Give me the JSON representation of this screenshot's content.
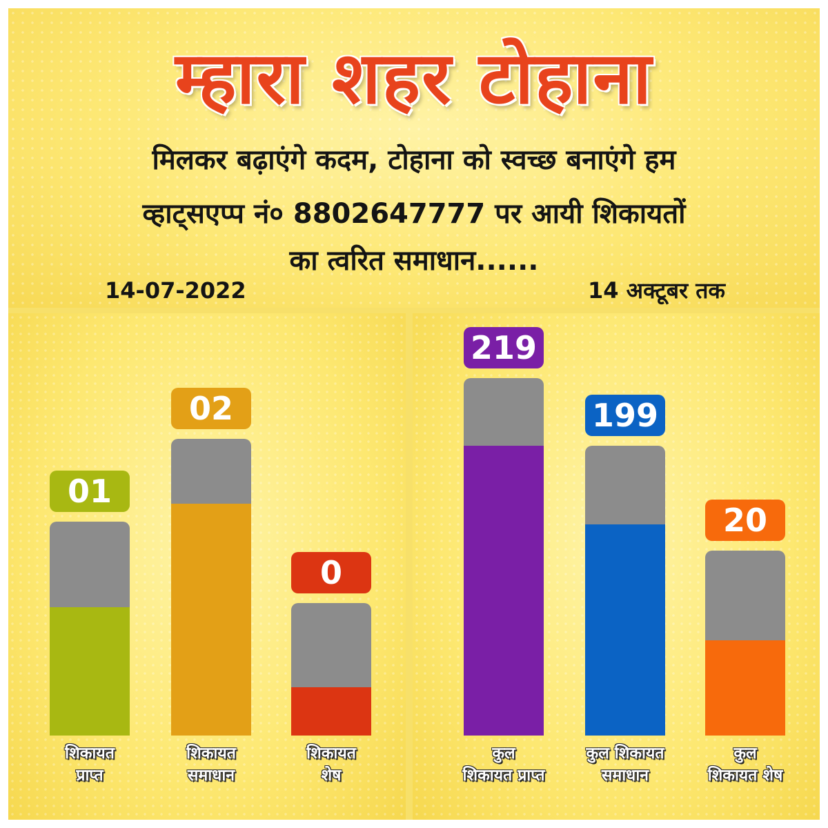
{
  "header": {
    "title": "म्हारा शहर टोहाना",
    "subtitle_line1": "मिलकर बढ़ाएंगे कदम, टोहाना को स्वच्छ बनाएंगे हम",
    "subtitle_line2": "व्हाट्सएप्प नं० 8802647777 पर आयी शिकायतों",
    "subtitle_line3": "का त्वरित समाधान......",
    "date_left": "14-07-2022",
    "date_right": "14 अक्टूबर तक"
  },
  "colors": {
    "title": "#e8431c",
    "bar_track": "#8c8c8c",
    "received_day": "#a8b812",
    "resolved_day": "#e3a017",
    "pending_day": "#dc3512",
    "received_total": "#7a1fa6",
    "resolved_total": "#0b63c4",
    "pending_total": "#f76a0c"
  },
  "chart_data": [
    {
      "type": "bar",
      "title": "14-07-2022",
      "categories": [
        "शिकायत प्राप्त",
        "शिकायत समाधान",
        "शिकायत शेष"
      ],
      "values": [
        1,
        2,
        0
      ],
      "value_labels": [
        "01",
        "02",
        "0"
      ],
      "colors": [
        "#a8b812",
        "#e3a017",
        "#dc3512"
      ]
    },
    {
      "type": "bar",
      "title": "14 अक्टूबर तक",
      "categories": [
        "कुल शिकायत प्राप्त",
        "कुल शिकायत समाधान",
        "कुल शिकायत शेष"
      ],
      "values": [
        219,
        199,
        20
      ],
      "value_labels": [
        "219",
        "199",
        "20"
      ],
      "colors": [
        "#7a1fa6",
        "#0b63c4",
        "#f76a0c"
      ]
    }
  ],
  "labels": {
    "left": [
      "शिकायत\nप्राप्त",
      "शिकायत\nसमाधान",
      "शिकायत\nशेष"
    ],
    "right": [
      "कुल\nशिकायत प्राप्त",
      "कुल शिकायत\nसमाधान",
      "कुल\nशिकायत शेष"
    ]
  }
}
